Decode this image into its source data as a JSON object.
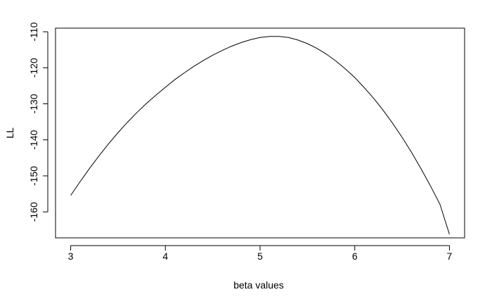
{
  "chart_data": {
    "type": "line",
    "title": "",
    "xlabel": "beta values",
    "ylabel": "LL",
    "xlim": [
      2.84,
      7.16
    ],
    "ylim": [
      -167.2,
      -109.0
    ],
    "xticks": [
      3,
      4,
      5,
      6,
      7
    ],
    "yticks": [
      -160,
      -150,
      -140,
      -130,
      -120,
      -110
    ],
    "grid": false,
    "series": [
      {
        "color": "#000000",
        "x": [
          3.0,
          3.1,
          3.2,
          3.3,
          3.4,
          3.5,
          3.6,
          3.7,
          3.8,
          3.9,
          4.0,
          4.1,
          4.2,
          4.3,
          4.4,
          4.5,
          4.6,
          4.7,
          4.8,
          4.9,
          5.0,
          5.1,
          5.2,
          5.3,
          5.4,
          5.5,
          5.6,
          5.7,
          5.8,
          5.9,
          6.0,
          6.1,
          6.2,
          6.3,
          6.4,
          6.5,
          6.6,
          6.7,
          6.8,
          6.9,
          7.0
        ],
        "y": [
          -155.4,
          -151.6,
          -147.9,
          -144.4,
          -141.1,
          -138.0,
          -135.1,
          -132.4,
          -129.9,
          -127.6,
          -125.4,
          -123.3,
          -121.4,
          -119.6,
          -118.0,
          -116.5,
          -115.2,
          -114.0,
          -113.0,
          -112.2,
          -111.6,
          -111.3,
          -111.3,
          -111.6,
          -112.3,
          -113.3,
          -114.6,
          -116.2,
          -118.1,
          -120.3,
          -122.7,
          -125.5,
          -128.5,
          -131.8,
          -135.4,
          -139.3,
          -143.5,
          -148.0,
          -152.8,
          -157.9,
          -166.2
        ]
      }
    ]
  }
}
